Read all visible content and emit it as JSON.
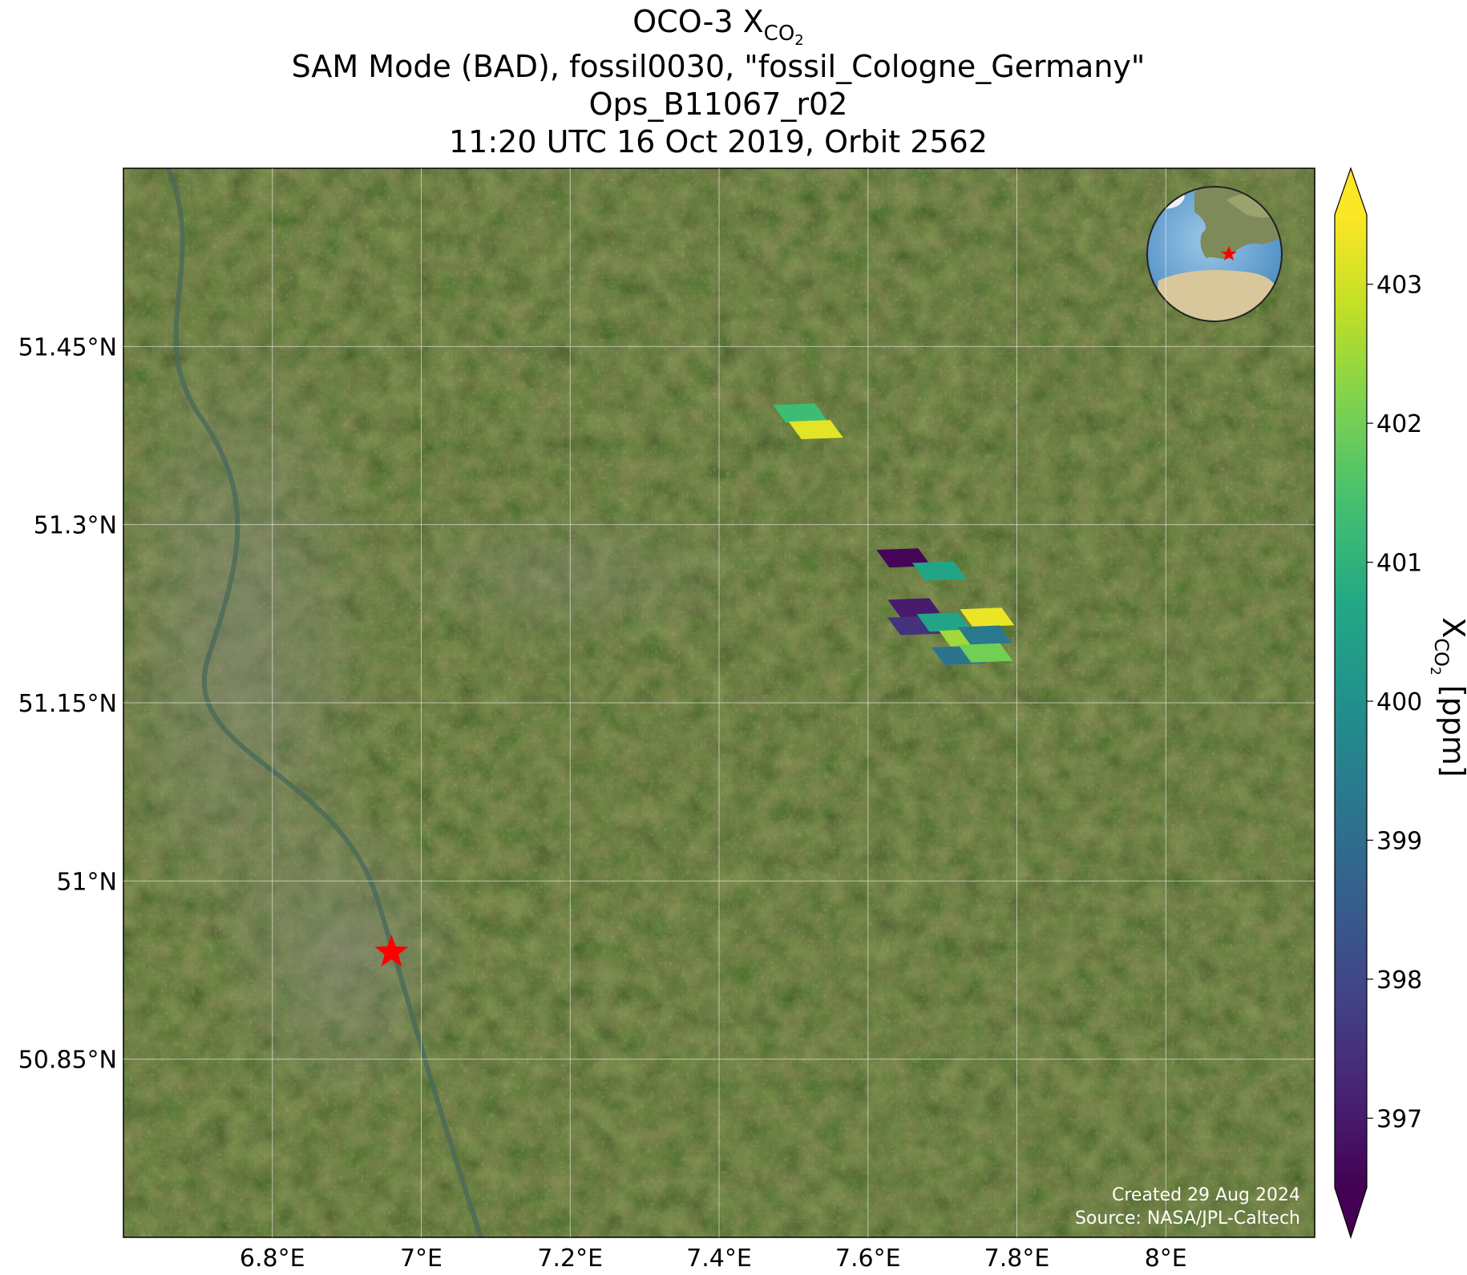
{
  "chart_data": {
    "type": "map",
    "title": {
      "symbol": "OCO-3 X",
      "subscript": "CO",
      "subsubscript": "2"
    },
    "subtitle_lines": [
      "SAM Mode (BAD), fossil0030, \"fossil_Cologne_Germany\"",
      "Ops_B11067_r02",
      "11:20 UTC 16 Oct 2019, Orbit 2562"
    ],
    "xlim": [
      6.6,
      8.2
    ],
    "ylim": [
      50.7,
      51.6
    ],
    "xticks": [
      {
        "value": 6.8,
        "label": "6.8°E"
      },
      {
        "value": 7,
        "label": "7°E"
      },
      {
        "value": 7.2,
        "label": "7.2°E"
      },
      {
        "value": 7.4,
        "label": "7.4°E"
      },
      {
        "value": 7.6,
        "label": "7.6°E"
      },
      {
        "value": 7.8,
        "label": "7.8°E"
      },
      {
        "value": 8,
        "label": "8°E"
      }
    ],
    "yticks": [
      {
        "value": 50.85,
        "label": "50.85°N"
      },
      {
        "value": 51,
        "label": "51°N"
      },
      {
        "value": 51.15,
        "label": "51.15°N"
      },
      {
        "value": 51.3,
        "label": "51.3°N"
      },
      {
        "value": 51.45,
        "label": "51.45°N"
      }
    ],
    "grid": true,
    "footprints": {
      "lon": [
        7.509,
        7.53,
        7.648,
        7.696,
        7.663,
        7.663,
        7.702,
        7.76,
        7.732,
        7.757,
        7.722,
        7.758
      ],
      "lat": [
        51.394,
        51.38,
        51.272,
        51.261,
        51.23,
        51.215,
        51.218,
        51.222,
        51.204,
        51.207,
        51.19,
        51.192
      ],
      "values": [
        401.3,
        403.2,
        396.6,
        400.6,
        397.0,
        397.5,
        400.6,
        403.3,
        402.5,
        399.3,
        399.2,
        402.0
      ]
    },
    "site": {
      "lon": 6.96,
      "lat": 50.94,
      "color": "#ff0000"
    },
    "colormap": "viridis",
    "clim": [
      396.5,
      403.5
    ],
    "colorbar_ticks": [
      397,
      398,
      399,
      400,
      401,
      402,
      403
    ],
    "colorbar_label": {
      "symbol": "X",
      "subscript": "CO",
      "subsubscript": "2",
      "unit": " [ppm]"
    },
    "credits": [
      "Created 29 Aug 2024",
      "Source: NASA/JPL-Caltech"
    ]
  }
}
